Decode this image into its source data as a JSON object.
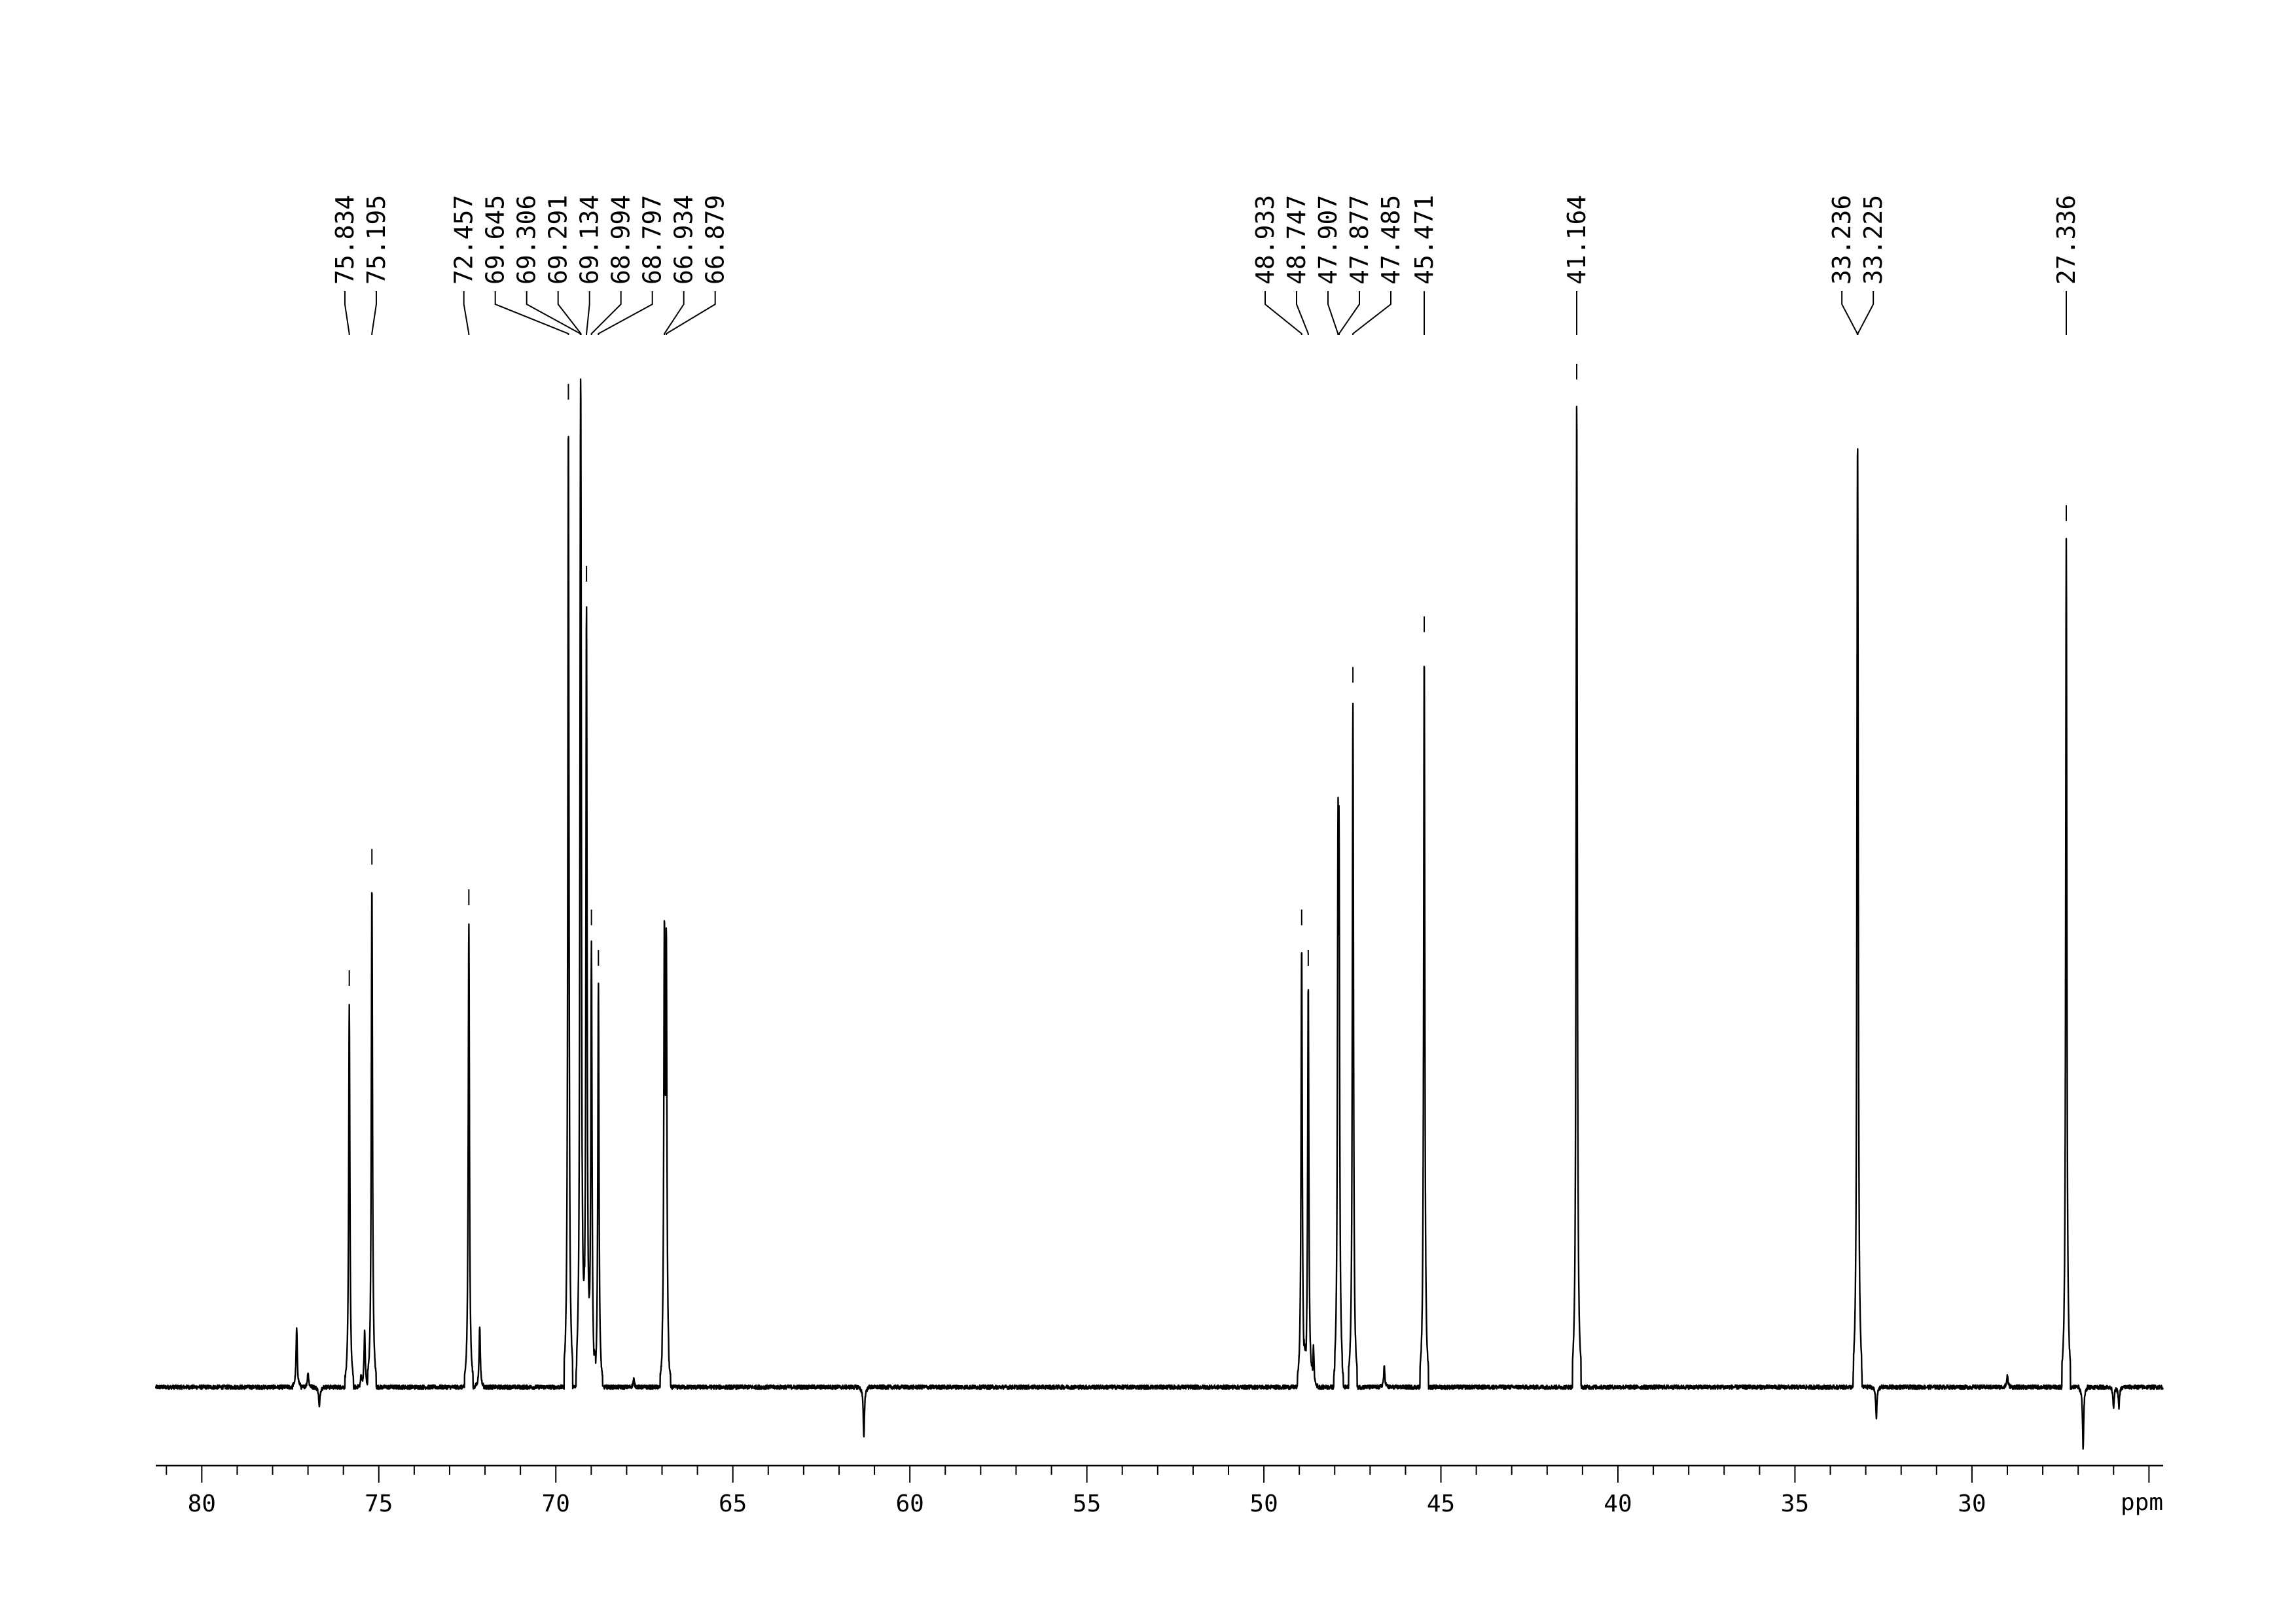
{
  "chart_data": {
    "type": "line",
    "title": "",
    "xlabel": "ppm",
    "ylabel": "",
    "x_reversed": true,
    "xlim": [
      81.3,
      24.6
    ],
    "ylim": [
      -0.09,
      1.02
    ],
    "grid": false,
    "x_ticks": [
      80,
      75,
      70,
      65,
      60,
      55,
      50,
      45,
      40,
      35,
      30
    ],
    "x_tick_labels": [
      "80",
      "75",
      "70",
      "65",
      "60",
      "55",
      "50",
      "45",
      "40",
      "35",
      "30"
    ],
    "series": [
      {
        "peaks": [
          {
            "ppm": 77.32,
            "height": 0.058
          },
          {
            "ppm": 77.0,
            "height": 0.015
          },
          {
            "ppm": 76.68,
            "height": -0.02
          },
          {
            "ppm": 75.834,
            "height": 0.38
          },
          {
            "ppm": 75.5,
            "height": 0.01
          },
          {
            "ppm": 75.4,
            "height": 0.055
          },
          {
            "ppm": 75.195,
            "height": 0.5
          },
          {
            "ppm": 72.457,
            "height": 0.46
          },
          {
            "ppm": 72.15,
            "height": 0.06
          },
          {
            "ppm": 69.645,
            "height": 0.96
          },
          {
            "ppm": 69.306,
            "height": 0.57
          },
          {
            "ppm": 69.291,
            "height": 0.57
          },
          {
            "ppm": 69.134,
            "height": 0.78
          },
          {
            "ppm": 68.994,
            "height": 0.44
          },
          {
            "ppm": 68.797,
            "height": 0.4
          },
          {
            "ppm": 67.8,
            "height": 0.008
          },
          {
            "ppm": 66.934,
            "height": 0.42
          },
          {
            "ppm": 66.879,
            "height": 0.41
          },
          {
            "ppm": 61.3,
            "height": -0.05
          },
          {
            "ppm": 48.933,
            "height": 0.44
          },
          {
            "ppm": 48.747,
            "height": 0.4
          },
          {
            "ppm": 48.6,
            "height": 0.04
          },
          {
            "ppm": 47.907,
            "height": 0.44
          },
          {
            "ppm": 47.877,
            "height": 0.43
          },
          {
            "ppm": 47.485,
            "height": 0.68
          },
          {
            "ppm": 46.6,
            "height": 0.02
          },
          {
            "ppm": 45.471,
            "height": 0.73
          },
          {
            "ppm": 41.164,
            "height": 0.98
          },
          {
            "ppm": 33.236,
            "height": 0.51
          },
          {
            "ppm": 33.225,
            "height": 0.5
          },
          {
            "ppm": 32.7,
            "height": -0.03
          },
          {
            "ppm": 29.0,
            "height": 0.012
          },
          {
            "ppm": 27.336,
            "height": 0.84
          },
          {
            "ppm": 26.86,
            "height": -0.06
          },
          {
            "ppm": 26.0,
            "height": -0.02
          },
          {
            "ppm": 25.85,
            "height": -0.02
          }
        ]
      }
    ],
    "peak_labels": [
      {
        "ppm": 75.834,
        "label": "75.834"
      },
      {
        "ppm": 75.195,
        "label": "75.195"
      },
      {
        "ppm": 72.457,
        "label": "72.457"
      },
      {
        "ppm": 69.645,
        "label": "69.645"
      },
      {
        "ppm": 69.306,
        "label": "69.306"
      },
      {
        "ppm": 69.291,
        "label": "69.291"
      },
      {
        "ppm": 69.134,
        "label": "69.134"
      },
      {
        "ppm": 68.994,
        "label": "68.994"
      },
      {
        "ppm": 68.797,
        "label": "68.797"
      },
      {
        "ppm": 66.934,
        "label": "66.934"
      },
      {
        "ppm": 66.879,
        "label": "66.879"
      },
      {
        "ppm": 48.933,
        "label": "48.933"
      },
      {
        "ppm": 48.747,
        "label": "48.747"
      },
      {
        "ppm": 47.907,
        "label": "47.907"
      },
      {
        "ppm": 47.877,
        "label": "47.877"
      },
      {
        "ppm": 47.485,
        "label": "47.485"
      },
      {
        "ppm": 45.471,
        "label": "45.471"
      },
      {
        "ppm": 41.164,
        "label": "41.164"
      },
      {
        "ppm": 33.236,
        "label": "33.236"
      },
      {
        "ppm": 33.225,
        "label": "33.225"
      },
      {
        "ppm": 27.336,
        "label": "27.336"
      }
    ]
  }
}
